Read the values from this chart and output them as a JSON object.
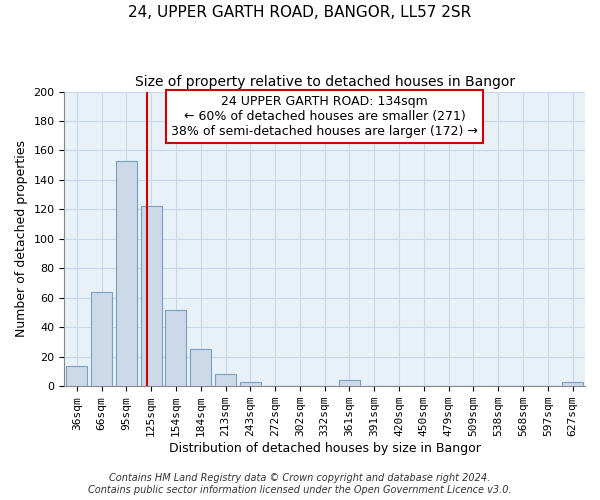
{
  "title": "24, UPPER GARTH ROAD, BANGOR, LL57 2SR",
  "subtitle": "Size of property relative to detached houses in Bangor",
  "xlabel": "Distribution of detached houses by size in Bangor",
  "ylabel": "Number of detached properties",
  "bar_color": "#ccd9e8",
  "bar_edge_color": "#7aa0c0",
  "categories": [
    "36sqm",
    "66sqm",
    "95sqm",
    "125sqm",
    "154sqm",
    "184sqm",
    "213sqm",
    "243sqm",
    "272sqm",
    "302sqm",
    "332sqm",
    "361sqm",
    "391sqm",
    "420sqm",
    "450sqm",
    "479sqm",
    "509sqm",
    "538sqm",
    "568sqm",
    "597sqm",
    "627sqm"
  ],
  "values": [
    14,
    64,
    153,
    122,
    52,
    25,
    8,
    3,
    0,
    0,
    0,
    4,
    0,
    0,
    0,
    0,
    0,
    0,
    0,
    0,
    3
  ],
  "ylim": [
    0,
    200
  ],
  "yticks": [
    0,
    20,
    40,
    60,
    80,
    100,
    120,
    140,
    160,
    180,
    200
  ],
  "vline_color": "#cc0000",
  "vline_bar_index": 3,
  "annotation_text_line1": "24 UPPER GARTH ROAD: 134sqm",
  "annotation_text_line2": "← 60% of detached houses are smaller (271)",
  "annotation_text_line3": "38% of semi-detached houses are larger (172) →",
  "footer_line1": "Contains HM Land Registry data © Crown copyright and database right 2024.",
  "footer_line2": "Contains public sector information licensed under the Open Government Licence v3.0.",
  "title_fontsize": 11,
  "subtitle_fontsize": 10,
  "xlabel_fontsize": 9,
  "ylabel_fontsize": 9,
  "tick_fontsize": 8,
  "annotation_fontsize": 9,
  "footer_fontsize": 7,
  "grid_color": "#c8d8e8",
  "background_color": "#e8f0f8"
}
